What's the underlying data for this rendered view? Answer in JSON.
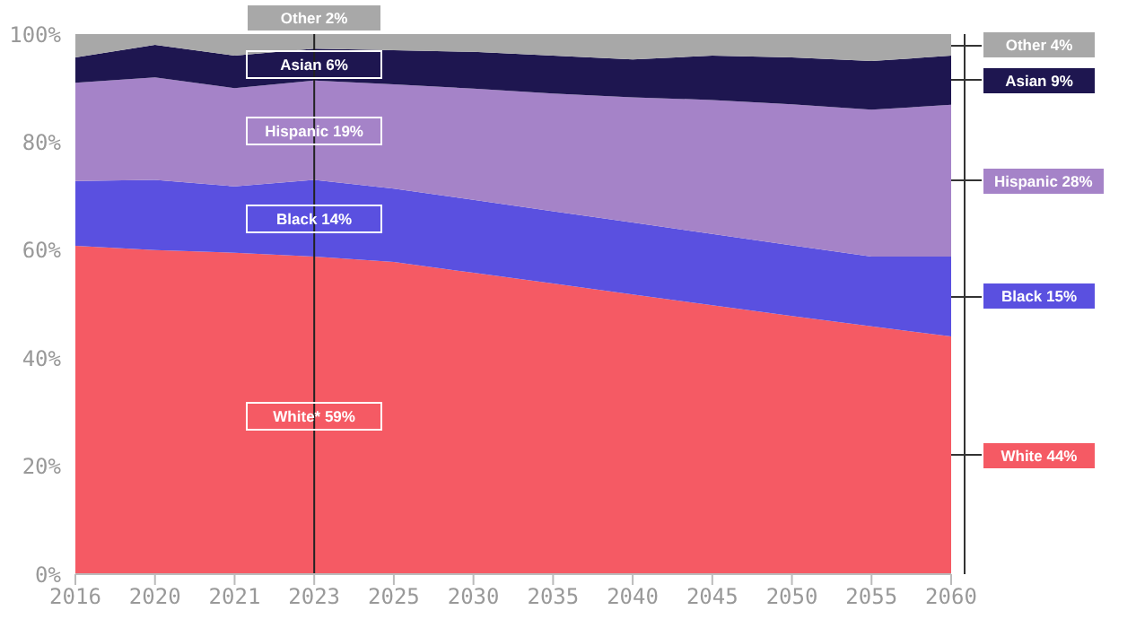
{
  "chart_data": {
    "type": "area",
    "stacked": true,
    "categories": [
      "2016",
      "2020",
      "2021",
      "2023",
      "2025",
      "2030",
      "2035",
      "2040",
      "2045",
      "2050",
      "2055",
      "2060"
    ],
    "series": [
      {
        "color": "#f55a64",
        "values": [
          60.8,
          60,
          59.5,
          58.8,
          57.8,
          55.8,
          53.8,
          51.8,
          49.8,
          47.8,
          45.9,
          44
        ]
      },
      {
        "color": "#5a50e0",
        "values": [
          12,
          13,
          12.3,
          14.2,
          13.6,
          13.5,
          13.4,
          13.3,
          13.2,
          13.1,
          12.9,
          14.8
        ]
      },
      {
        "color": "#a583c8",
        "values": [
          18.2,
          19,
          18.2,
          18.4,
          19.3,
          20.6,
          21.8,
          23.2,
          24.8,
          26.1,
          27.2,
          28.1
        ]
      },
      {
        "color": "#1e1650",
        "values": [
          4.7,
          6,
          6,
          5.9,
          6.3,
          6.8,
          7,
          7,
          8.2,
          8.7,
          9,
          9.1
        ]
      },
      {
        "color": "#a8a8a8",
        "values": [
          4.3,
          2,
          4,
          2.7,
          3,
          3.3,
          4,
          4.7,
          4,
          4.3,
          5,
          4
        ]
      }
    ],
    "ylim": [
      0,
      100
    ],
    "yticks": [
      {
        "value": 0,
        "label": "0%"
      },
      {
        "value": 20,
        "label": "20%"
      },
      {
        "value": 40,
        "label": "40%"
      },
      {
        "value": 60,
        "label": "60%"
      },
      {
        "value": 80,
        "label": "80%"
      },
      {
        "value": 100,
        "label": "100%"
      }
    ],
    "ref_lines": [
      {
        "axis": "x",
        "value": "2023",
        "color": "#222222"
      }
    ],
    "annotations": [
      "Other 2%",
      "Asian 6%",
      "Hispanic 19%",
      "Black 14%",
      "White* 59%",
      "Other 4%",
      "Asian 9%",
      "Hispanic 28%",
      "Black 15%",
      "White 44%"
    ]
  }
}
